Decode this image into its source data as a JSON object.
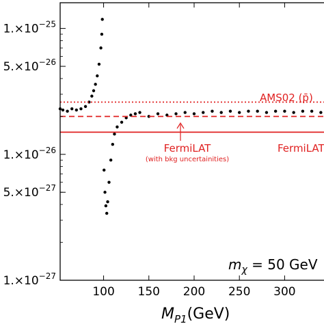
{
  "chart_data": {
    "type": "scatter",
    "title": "",
    "xlabel_main": "M",
    "xlabel_sub": "P1",
    "xlabel_unit": "(GeV)",
    "ylabel": "",
    "xlim": [
      52,
      345
    ],
    "ylim": [
      1e-27,
      1.6e-25
    ],
    "yscale": "log",
    "grid": false,
    "x_ticks": [
      {
        "value": 100,
        "label": "100"
      },
      {
        "value": 150,
        "label": "150"
      },
      {
        "value": 200,
        "label": "200"
      },
      {
        "value": 250,
        "label": "250"
      },
      {
        "value": 300,
        "label": "300"
      }
    ],
    "y_ticks": [
      {
        "value": 1e-25,
        "label": "1.×10",
        "exp": "−25"
      },
      {
        "value": 5e-26,
        "label": "5.×10",
        "exp": "−26"
      },
      {
        "value": 1e-26,
        "label": "1.×10",
        "exp": "−26"
      },
      {
        "value": 5e-27,
        "label": "5.×10",
        "exp": "−27"
      },
      {
        "value": 1e-27,
        "label": "1.×10",
        "exp": "−27"
      }
    ],
    "mass_label": {
      "symbol": "m",
      "sub": "χ",
      "text": " = 50 GeV"
    },
    "reference_lines": [
      {
        "name": "AMS02",
        "value": 2.6e-26,
        "style": "dotted",
        "color": "#e02020",
        "label": "AMS02 (p̄)"
      },
      {
        "name": "FermiLAT (with bkg uncertainities)",
        "value": 2e-26,
        "style": "dashed",
        "color": "#e02020",
        "label": "FermiLAT",
        "sublabel": "(with bkg uncertainities)"
      },
      {
        "name": "FermiLAT",
        "value": 1.5e-26,
        "style": "solid",
        "color": "#e02020",
        "label": "FermiLAT"
      }
    ],
    "series": [
      {
        "points": [
          [
            52,
            2.3e-26
          ],
          [
            55,
            2.25e-26
          ],
          [
            60,
            2.2e-26
          ],
          [
            65,
            2.3e-26
          ],
          [
            70,
            2.25e-26
          ],
          [
            75,
            2.3e-26
          ],
          [
            80,
            2.4e-26
          ],
          [
            84,
            2.6e-26
          ],
          [
            87,
            2.9e-26
          ],
          [
            89,
            3.2e-26
          ],
          [
            91,
            3.6e-26
          ],
          [
            93,
            4.2e-26
          ],
          [
            95,
            5.2e-26
          ],
          [
            97,
            7e-26
          ],
          [
            98,
            9e-26
          ],
          [
            98.6,
            1.18e-25
          ],
          [
            100.5,
            7.5e-27
          ],
          [
            101.5,
            5e-27
          ],
          [
            102.5,
            3.9e-27
          ],
          [
            103.5,
            3.4e-27
          ],
          [
            104.5,
            4.2e-27
          ],
          [
            106,
            6e-27
          ],
          [
            108,
            9e-27
          ],
          [
            110,
            1.2e-26
          ],
          [
            112,
            1.45e-26
          ],
          [
            115,
            1.65e-26
          ],
          [
            120,
            1.8e-26
          ],
          [
            125,
            1.95e-26
          ],
          [
            130,
            2.05e-26
          ],
          [
            135,
            2.1e-26
          ],
          [
            140,
            2.15e-26
          ],
          [
            150,
            2e-26
          ],
          [
            160,
            2.1e-26
          ],
          [
            170,
            2.05e-26
          ],
          [
            180,
            2.1e-26
          ],
          [
            190,
            2.15e-26
          ],
          [
            200,
            2.1e-26
          ],
          [
            210,
            2.15e-26
          ],
          [
            220,
            2.2e-26
          ],
          [
            230,
            2.15e-26
          ],
          [
            240,
            2.2e-26
          ],
          [
            250,
            2.15e-26
          ],
          [
            260,
            2.2e-26
          ],
          [
            270,
            2.2e-26
          ],
          [
            280,
            2.15e-26
          ],
          [
            290,
            2.2e-26
          ],
          [
            300,
            2.2e-26
          ],
          [
            310,
            2.15e-26
          ],
          [
            320,
            2.2e-26
          ],
          [
            330,
            2.2e-26
          ],
          [
            340,
            2.15e-26
          ]
        ]
      }
    ]
  }
}
